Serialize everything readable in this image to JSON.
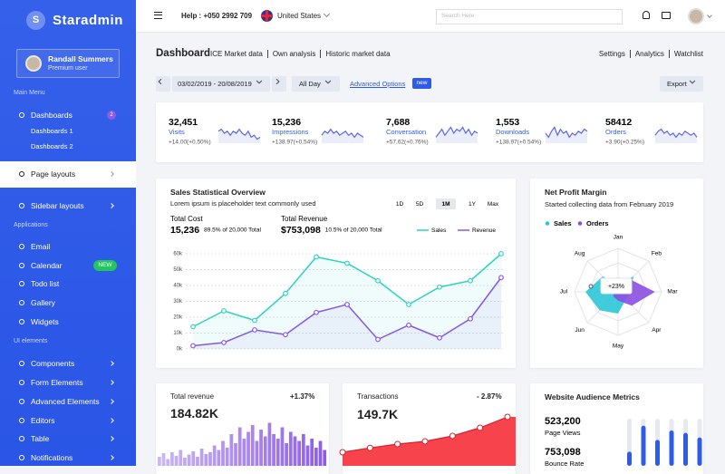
{
  "sidebar": {
    "logo": "S",
    "brand": "Staradmin",
    "user": {
      "name": "Randall Summers",
      "role": "Premium user"
    },
    "menu": [
      {
        "heading": "Main Menu"
      },
      {
        "label": "Dashboards",
        "badge": "2"
      },
      {
        "sub": "Dashboards 1"
      },
      {
        "sub": "Dashboards 2"
      },
      {
        "label": "Page layouts",
        "active": true,
        "arrow": true
      },
      {
        "label": "Sidebar layouts",
        "arrow": true
      },
      {
        "heading": "Applications"
      },
      {
        "label": "Email"
      },
      {
        "label": "Calendar",
        "badge": "NEW"
      },
      {
        "label": "Todo list"
      },
      {
        "label": "Gallery"
      },
      {
        "label": "Widgets"
      },
      {
        "heading": "UI elements"
      },
      {
        "label": "Components",
        "arrow": true
      },
      {
        "label": "Form Elements",
        "arrow": true
      },
      {
        "label": "Advanced Elements",
        "arrow": true
      },
      {
        "label": "Editors",
        "arrow": true
      },
      {
        "label": "Table",
        "arrow": true
      },
      {
        "label": "Notifications",
        "arrow": true
      }
    ]
  },
  "topbar": {
    "help": "Help : +050 2992 709",
    "country": "United States",
    "search_placeholder": "Search Here"
  },
  "header": {
    "title": "Dashboard",
    "links": [
      "ICE Market data",
      "Own analysis",
      "Historic market data"
    ],
    "actions": [
      "Settings",
      "Analytics",
      "Watchlist"
    ]
  },
  "toolbar": {
    "date_range": "03/02/2019 - 20/08/2019",
    "period": "All Day",
    "advanced": "Advanced Options",
    "badge": "new",
    "export": "Export"
  },
  "stats": {
    "color": "#5d68e2",
    "ylim": [
      0,
      10
    ],
    "items": [
      {
        "value": "32,451",
        "label": "Visits",
        "change": "+14.00(+0.50%)",
        "spark": [
          6,
          7,
          5,
          6,
          4,
          6,
          5,
          7,
          5,
          4,
          6,
          3,
          4,
          2,
          3
        ]
      },
      {
        "value": "15,236",
        "label": "Impressions",
        "change": "+138.97(+0.54%)",
        "spark": [
          4,
          6,
          5,
          7,
          5,
          6,
          4,
          5,
          6,
          4,
          5,
          3,
          5,
          4,
          3
        ]
      },
      {
        "value": "7,688",
        "label": "Conversation",
        "change": "+57.62(+0.76%)",
        "spark": [
          3,
          5,
          7,
          4,
          6,
          8,
          5,
          7,
          6,
          8,
          5,
          7,
          4,
          6,
          5
        ]
      },
      {
        "value": "1,553",
        "label": "Downloads",
        "change": "+138.97(+0.54%)",
        "spark": [
          5,
          3,
          6,
          8,
          4,
          7,
          5,
          6,
          3,
          5,
          4,
          6,
          5,
          7,
          6
        ]
      },
      {
        "value": "58412",
        "label": "Orders",
        "change": "+3.90(+0.25%)",
        "spark": [
          4,
          6,
          7,
          5,
          6,
          4,
          5,
          3,
          5,
          4,
          6,
          5,
          4,
          5,
          3
        ]
      }
    ]
  },
  "chart_data": [
    {
      "type": "line",
      "title": "Sales Statistical Overview",
      "subtitle": "Lorem ipsum is placeholder text commonly used",
      "ranges": [
        "1D",
        "5D",
        "1M",
        "1Y",
        "Max"
      ],
      "active_range": 2,
      "summary": [
        {
          "label": "Total Cost",
          "value": "15,236",
          "note": "89.5% of 20,000 Total"
        },
        {
          "label": "Total Revenue",
          "value": "$753,098",
          "note": "10.5% of 20,000 Total"
        }
      ],
      "series": [
        {
          "name": "Sales",
          "color": "#2dd3c0",
          "values": [
            14000,
            24000,
            18000,
            35000,
            58000,
            54000,
            43000,
            28000,
            39000,
            43000,
            60000
          ]
        },
        {
          "name": "Revenue",
          "color": "#8658e6",
          "values": [
            2000,
            4000,
            12000,
            9000,
            23000,
            28000,
            6000,
            15000,
            7000,
            19000,
            45000
          ]
        }
      ],
      "ylim": [
        0,
        60000
      ],
      "yticks": [
        {
          "value": 0,
          "label": "0k"
        },
        {
          "value": 10000,
          "label": "10k"
        },
        {
          "value": 20000,
          "label": "20k"
        },
        {
          "value": 30000,
          "label": "30k"
        },
        {
          "value": 40000,
          "label": "40k"
        },
        {
          "value": 50000,
          "label": "50k"
        },
        {
          "value": 60000,
          "label": "60k"
        }
      ],
      "grid": true
    },
    {
      "type": "radar",
      "title": "Net Profit Margin",
      "subtitle": "Started collecting data from February 2019",
      "categories": [
        "Jan",
        "Feb",
        "Mar",
        "Apr",
        "May",
        "Jun",
        "Jul",
        "Aug"
      ],
      "series": [
        {
          "name": "Sales",
          "color": "#2bc7d6",
          "values": [
            20,
            50,
            30,
            25,
            50,
            60,
            75,
            50
          ]
        },
        {
          "name": "Orders",
          "color": "#8a4fe3",
          "values": [
            10,
            40,
            85,
            45,
            20,
            15,
            10,
            35
          ]
        }
      ],
      "rlim": [
        0,
        100
      ],
      "annotation": "+23%"
    },
    {
      "type": "bar",
      "title": "Total revenue",
      "change": "+1.37%",
      "total": "184.82K",
      "color": "#8c5ce6",
      "ylim": [
        0,
        100
      ],
      "values": [
        20,
        28,
        15,
        30,
        22,
        35,
        18,
        25,
        32,
        20,
        38,
        26,
        30,
        45,
        35,
        55,
        40,
        70,
        50,
        85,
        60,
        75,
        90,
        55,
        80,
        65,
        95,
        70,
        60,
        85,
        50,
        75,
        65,
        55,
        70,
        45,
        60,
        40,
        55,
        35
      ]
    },
    {
      "type": "area",
      "title": "Transactions",
      "change": "- 2.87%",
      "total": "149.7K",
      "color": "#f7434c",
      "ylim": [
        0,
        100
      ],
      "values": [
        10,
        18,
        25,
        30,
        40,
        55,
        75
      ]
    },
    {
      "type": "bar",
      "title": "Website Audience Metrics",
      "metrics": [
        {
          "value": "523,200",
          "label": "Page Views"
        },
        {
          "value": "753,098",
          "label": "Bounce Rate"
        }
      ],
      "color": "#2f5be9",
      "ylim": [
        0,
        100
      ],
      "values": [
        30,
        85,
        55,
        75,
        70,
        60
      ]
    }
  ]
}
